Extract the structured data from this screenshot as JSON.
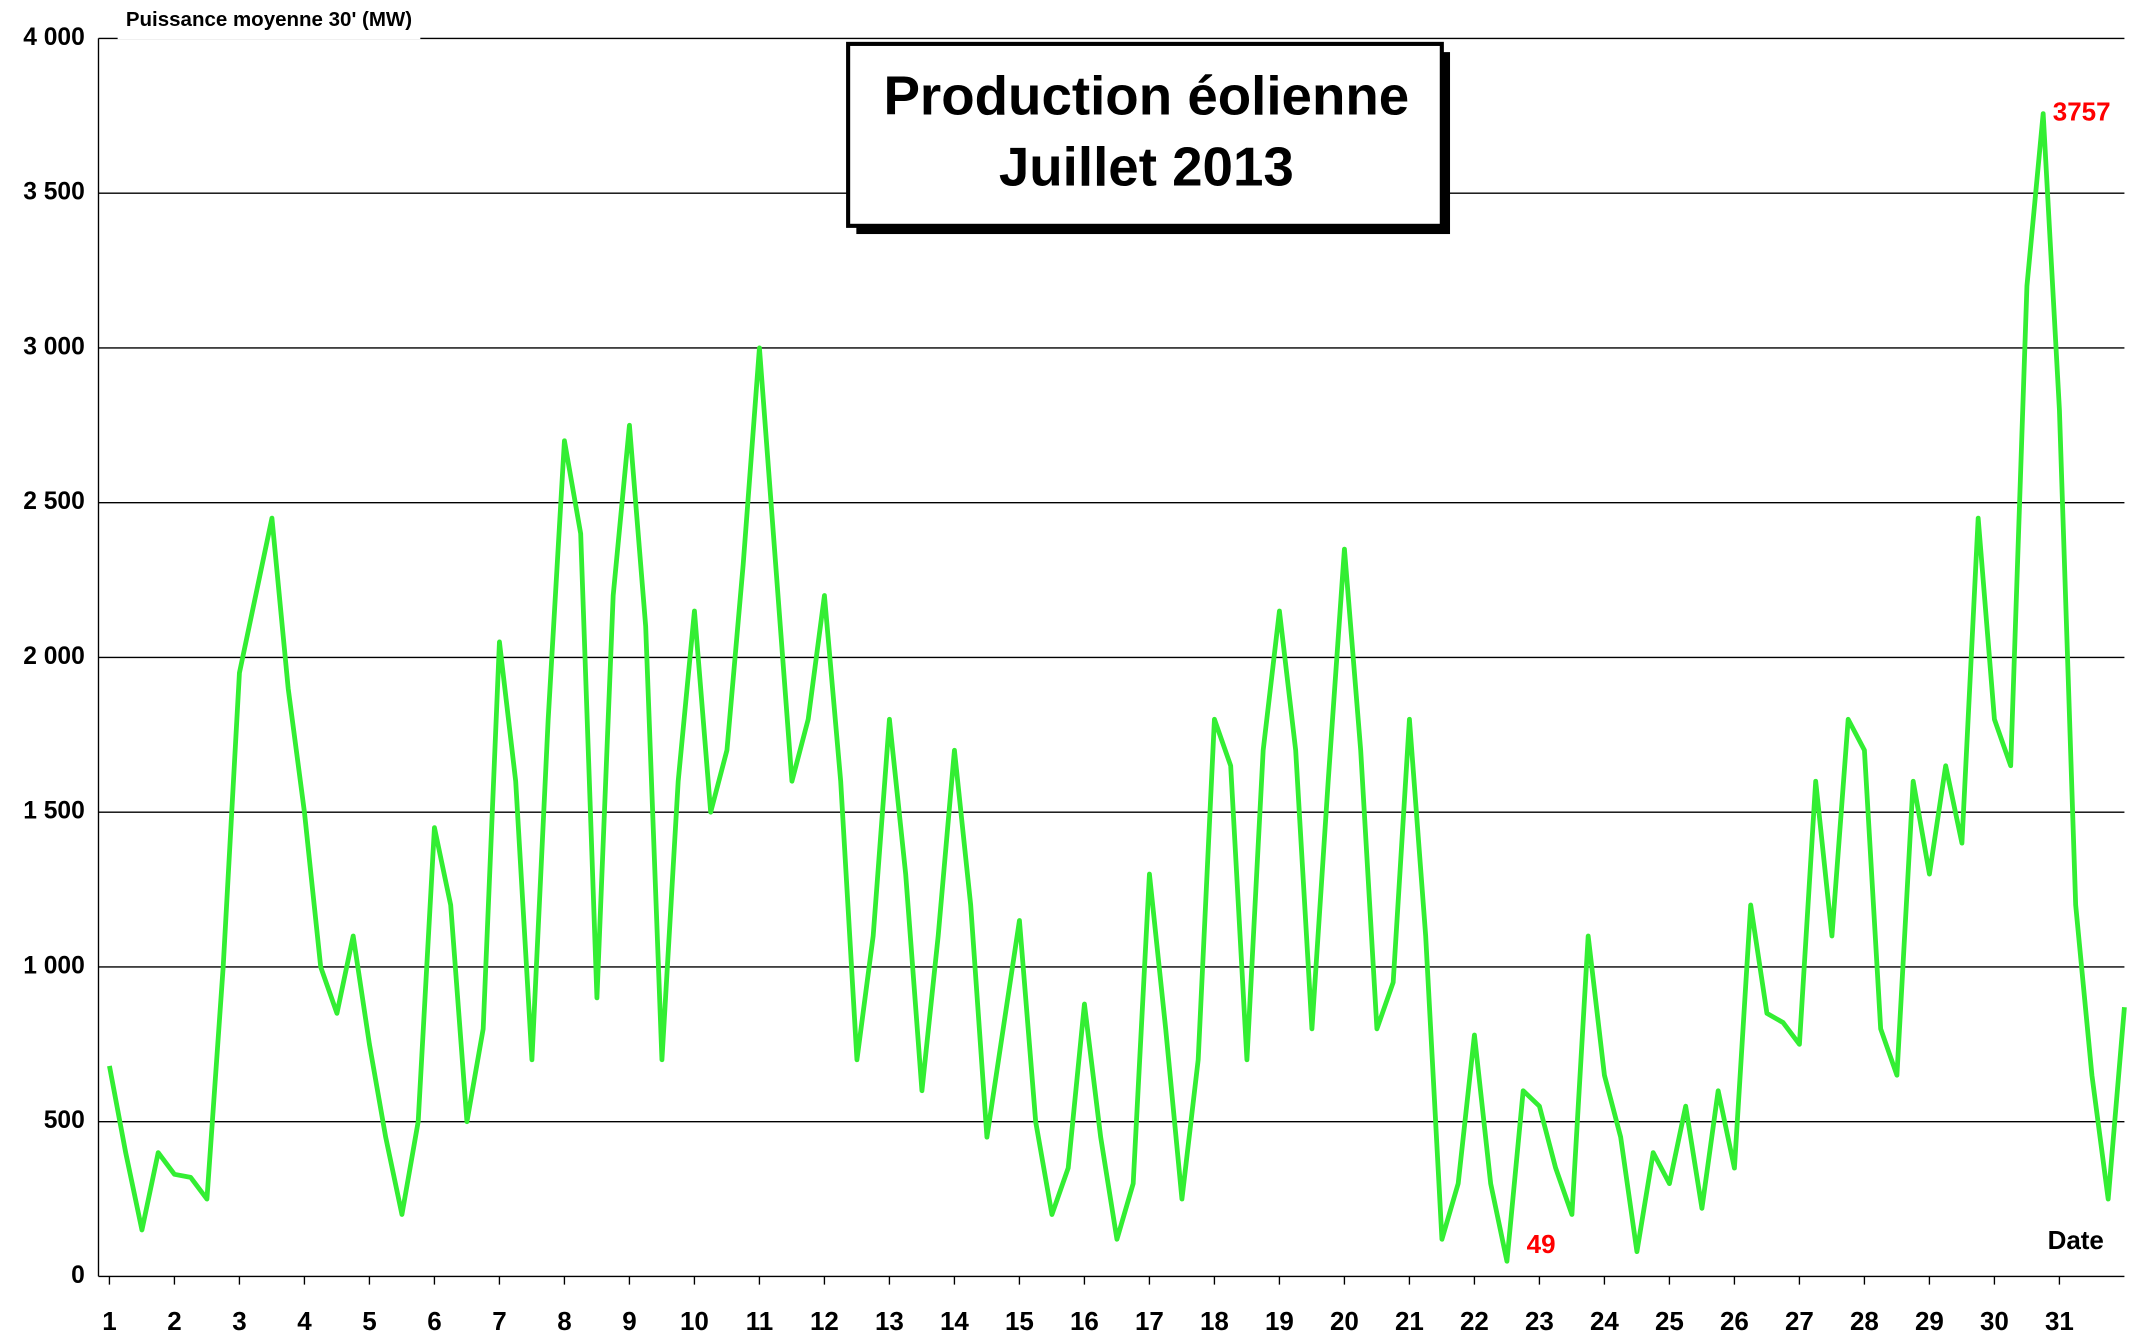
{
  "chart_data": {
    "type": "line",
    "title": [
      "Production éolienne",
      "Juillet 2013"
    ],
    "ylabel": "Puissance moyenne 30'  (MW)",
    "xlabel": "Date",
    "x": [
      1,
      1.25,
      1.5,
      1.75,
      2,
      2.25,
      2.5,
      2.75,
      3,
      3.25,
      3.5,
      3.75,
      4,
      4.25,
      4.5,
      4.75,
      5,
      5.25,
      5.5,
      5.75,
      6,
      6.25,
      6.5,
      6.75,
      7,
      7.25,
      7.5,
      7.75,
      8,
      8.25,
      8.5,
      8.75,
      9,
      9.25,
      9.5,
      9.75,
      10,
      10.25,
      10.5,
      10.75,
      11,
      11.25,
      11.5,
      11.75,
      12,
      12.25,
      12.5,
      12.75,
      13,
      13.25,
      13.5,
      13.75,
      14,
      14.25,
      14.5,
      14.75,
      15,
      15.25,
      15.5,
      15.75,
      16,
      16.25,
      16.5,
      16.75,
      17,
      17.25,
      17.5,
      17.75,
      18,
      18.25,
      18.5,
      18.75,
      19,
      19.25,
      19.5,
      19.75,
      20,
      20.25,
      20.5,
      20.75,
      21,
      21.25,
      21.5,
      21.75,
      22,
      22.25,
      22.5,
      22.75,
      23,
      23.25,
      23.5,
      23.75,
      24,
      24.25,
      24.5,
      24.75,
      25,
      25.25,
      25.5,
      25.75,
      26,
      26.25,
      26.5,
      26.75,
      27,
      27.25,
      27.5,
      27.75,
      28,
      28.25,
      28.5,
      28.75,
      29,
      29.25,
      29.5,
      29.75,
      30,
      30.25,
      30.5,
      30.75,
      31,
      31.25,
      31.5,
      31.75,
      32
    ],
    "series": [
      {
        "name": "Production",
        "color": "#33ee33",
        "values": [
          680,
          400,
          150,
          400,
          330,
          320,
          250,
          1000,
          1950,
          2200,
          2450,
          1900,
          1500,
          1000,
          850,
          1100,
          750,
          450,
          200,
          500,
          1450,
          1200,
          500,
          800,
          2050,
          1600,
          700,
          1800,
          2700,
          2400,
          900,
          2200,
          2750,
          2100,
          700,
          1600,
          2150,
          1500,
          1700,
          2300,
          3000,
          2300,
          1600,
          1800,
          2200,
          1600,
          700,
          1100,
          1800,
          1300,
          600,
          1100,
          1700,
          1200,
          450,
          800,
          1150,
          500,
          200,
          350,
          880,
          450,
          120,
          300,
          1300,
          800,
          250,
          700,
          1800,
          1650,
          700,
          1700,
          2150,
          1700,
          800,
          1600,
          2350,
          1700,
          800,
          950,
          1800,
          1100,
          120,
          300,
          780,
          300,
          49,
          600,
          550,
          350,
          200,
          1100,
          650,
          450,
          80,
          400,
          300,
          550,
          220,
          600,
          350,
          1200,
          850,
          820,
          750,
          1600,
          1100,
          1800,
          1700,
          800,
          650,
          1600,
          1300,
          1650,
          1400,
          2450,
          1800,
          1650,
          3200,
          3757,
          2800,
          1200,
          650,
          250,
          870
        ]
      }
    ],
    "annotations": [
      {
        "text": "3757",
        "x": 30.75,
        "y": 3757,
        "color": "#ff0000"
      },
      {
        "text": "49",
        "x": 22.5,
        "y": 49,
        "color": "#ff0000"
      }
    ],
    "xlim": [
      1,
      32
    ],
    "xticks": [
      1,
      2,
      3,
      4,
      5,
      6,
      7,
      8,
      9,
      10,
      11,
      12,
      13,
      14,
      15,
      16,
      17,
      18,
      19,
      20,
      21,
      22,
      23,
      24,
      25,
      26,
      27,
      28,
      29,
      30,
      31
    ],
    "ylim": [
      0,
      4000
    ],
    "yticks": [
      0,
      500,
      {
        "value": 1000,
        "label": "1 000"
      },
      {
        "value": 1500,
        "label": "1 500"
      },
      {
        "value": 2000,
        "label": "2 000"
      },
      {
        "value": 2500,
        "label": "2 500"
      },
      {
        "value": 3000,
        "label": "3 000"
      },
      {
        "value": 3500,
        "label": "3 500"
      },
      {
        "value": 4000,
        "label": "4 000"
      }
    ],
    "grid": true
  }
}
